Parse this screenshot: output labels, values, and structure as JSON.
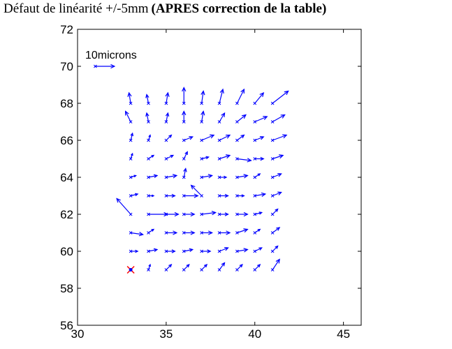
{
  "title_part1": "Défaut de linéarité +/-5mm",
  "title_part2": "(APRES correction de la table)",
  "chart_data": {
    "type": "quiver",
    "title": "Défaut de linéarité +/-5mm (APRES correction de la table)",
    "xlim": [
      30,
      46
    ],
    "ylim": [
      56,
      72
    ],
    "xticks": [
      30,
      35,
      40,
      45
    ],
    "yticks": [
      56,
      58,
      60,
      62,
      64,
      66,
      68,
      70,
      72
    ],
    "grid": false,
    "arrow_color": "#0000ff",
    "reference_marker": {
      "x": 33,
      "y": 59,
      "color": "#ff0000"
    },
    "scale_arrow": {
      "label": "10microns",
      "x": 31,
      "y": 70,
      "u": 1.1,
      "v": 0
    },
    "vectors": [
      {
        "x": 33,
        "y": 68,
        "u": -0.1,
        "v": 0.6
      },
      {
        "x": 34,
        "y": 68,
        "u": -0.1,
        "v": 0.5
      },
      {
        "x": 35,
        "y": 68,
        "u": 0.1,
        "v": 0.6
      },
      {
        "x": 36,
        "y": 68,
        "u": 0.0,
        "v": 0.9
      },
      {
        "x": 37,
        "y": 68,
        "u": 0.1,
        "v": 0.7
      },
      {
        "x": 38,
        "y": 68,
        "u": 0.2,
        "v": 0.8
      },
      {
        "x": 39,
        "y": 68,
        "u": 0.4,
        "v": 0.8
      },
      {
        "x": 40,
        "y": 68,
        "u": 0.5,
        "v": 0.6
      },
      {
        "x": 41,
        "y": 68,
        "u": 0.9,
        "v": 0.7
      },
      {
        "x": 33,
        "y": 67,
        "u": -0.3,
        "v": 0.6
      },
      {
        "x": 34,
        "y": 67,
        "u": -0.1,
        "v": 0.5
      },
      {
        "x": 35,
        "y": 67,
        "u": 0.1,
        "v": 0.5
      },
      {
        "x": 36,
        "y": 67,
        "u": 0.0,
        "v": 0.6
      },
      {
        "x": 37,
        "y": 67,
        "u": 0.1,
        "v": 0.6
      },
      {
        "x": 38,
        "y": 67,
        "u": 0.3,
        "v": 0.5
      },
      {
        "x": 39,
        "y": 67,
        "u": 0.5,
        "v": 0.4
      },
      {
        "x": 40,
        "y": 67,
        "u": 0.7,
        "v": 0.3
      },
      {
        "x": 41,
        "y": 67,
        "u": 0.7,
        "v": 0.4
      },
      {
        "x": 33,
        "y": 66,
        "u": 0.1,
        "v": 0.4
      },
      {
        "x": 34,
        "y": 66,
        "u": 0.1,
        "v": 0.3
      },
      {
        "x": 35,
        "y": 66,
        "u": 0.3,
        "v": 0.3
      },
      {
        "x": 36,
        "y": 66,
        "u": 0.5,
        "v": 0.2
      },
      {
        "x": 37,
        "y": 66,
        "u": 0.7,
        "v": 0.3
      },
      {
        "x": 38,
        "y": 66,
        "u": 0.6,
        "v": 0.3
      },
      {
        "x": 39,
        "y": 66,
        "u": 0.4,
        "v": 0.3
      },
      {
        "x": 40,
        "y": 66,
        "u": 0.5,
        "v": 0.2
      },
      {
        "x": 41,
        "y": 66,
        "u": 0.8,
        "v": 0.3
      },
      {
        "x": 33,
        "y": 65,
        "u": 0.1,
        "v": 0.3
      },
      {
        "x": 34,
        "y": 65,
        "u": 0.3,
        "v": 0.2
      },
      {
        "x": 35,
        "y": 65,
        "u": 0.4,
        "v": 0.2
      },
      {
        "x": 36,
        "y": 65,
        "u": 0.2,
        "v": 0.4
      },
      {
        "x": 37,
        "y": 65,
        "u": 0.4,
        "v": 0.1
      },
      {
        "x": 38,
        "y": 65,
        "u": 0.6,
        "v": 0.2
      },
      {
        "x": 39,
        "y": 65,
        "u": 0.8,
        "v": -0.1
      },
      {
        "x": 40,
        "y": 65,
        "u": 0.5,
        "v": 0.0
      },
      {
        "x": 41,
        "y": 65,
        "u": 0.6,
        "v": 0.2
      },
      {
        "x": 33,
        "y": 64,
        "u": 0.3,
        "v": 0.1
      },
      {
        "x": 34,
        "y": 64,
        "u": 0.5,
        "v": 0.1
      },
      {
        "x": 35,
        "y": 64,
        "u": 0.6,
        "v": 0.1
      },
      {
        "x": 36,
        "y": 64,
        "u": 0.1,
        "v": 0.5
      },
      {
        "x": 37,
        "y": 64,
        "u": 0.6,
        "v": 0.1
      },
      {
        "x": 38,
        "y": 64,
        "u": 0.4,
        "v": 0.0
      },
      {
        "x": 39,
        "y": 64,
        "u": 0.6,
        "v": 0.1
      },
      {
        "x": 40,
        "y": 64,
        "u": 0.3,
        "v": 0.2
      },
      {
        "x": 41,
        "y": 64,
        "u": 0.5,
        "v": 0.2
      },
      {
        "x": 33,
        "y": 63,
        "u": 0.4,
        "v": 0.1
      },
      {
        "x": 34,
        "y": 63,
        "u": 0.3,
        "v": 0.0
      },
      {
        "x": 35,
        "y": 63,
        "u": 0.5,
        "v": 0.0
      },
      {
        "x": 36,
        "y": 63,
        "u": 0.8,
        "v": 0.0
      },
      {
        "x": 37,
        "y": 63,
        "u": -0.6,
        "v": 0.6
      },
      {
        "x": 38,
        "y": 63,
        "u": 0.5,
        "v": 0.0
      },
      {
        "x": 39,
        "y": 63,
        "u": 0.4,
        "v": 0.0
      },
      {
        "x": 40,
        "y": 63,
        "u": 0.6,
        "v": 0.1
      },
      {
        "x": 41,
        "y": 63,
        "u": 0.5,
        "v": 0.2
      },
      {
        "x": 33,
        "y": 62,
        "u": -0.8,
        "v": 0.9
      },
      {
        "x": 34,
        "y": 62,
        "u": 1.1,
        "v": 0.0
      },
      {
        "x": 35,
        "y": 62,
        "u": 0.7,
        "v": 0.0
      },
      {
        "x": 36,
        "y": 62,
        "u": 0.6,
        "v": 0.0
      },
      {
        "x": 37,
        "y": 62,
        "u": 0.8,
        "v": 0.1
      },
      {
        "x": 38,
        "y": 62,
        "u": 0.5,
        "v": 0.0
      },
      {
        "x": 39,
        "y": 62,
        "u": 0.6,
        "v": 0.0
      },
      {
        "x": 40,
        "y": 62,
        "u": 0.4,
        "v": 0.1
      },
      {
        "x": 41,
        "y": 62,
        "u": 0.3,
        "v": 0.3
      },
      {
        "x": 33,
        "y": 61,
        "u": 0.7,
        "v": -0.1
      },
      {
        "x": 34,
        "y": 61,
        "u": 0.3,
        "v": 0.2
      },
      {
        "x": 35,
        "y": 61,
        "u": 0.6,
        "v": 0.0
      },
      {
        "x": 36,
        "y": 61,
        "u": 0.6,
        "v": 0.0
      },
      {
        "x": 37,
        "y": 61,
        "u": 0.6,
        "v": 0.0
      },
      {
        "x": 38,
        "y": 61,
        "u": 0.6,
        "v": 0.0
      },
      {
        "x": 39,
        "y": 61,
        "u": 0.6,
        "v": 0.2
      },
      {
        "x": 40,
        "y": 61,
        "u": 0.3,
        "v": 0.2
      },
      {
        "x": 41,
        "y": 61,
        "u": 0.4,
        "v": 0.3
      },
      {
        "x": 33,
        "y": 60,
        "u": 0.4,
        "v": 0.0
      },
      {
        "x": 34,
        "y": 60,
        "u": 0.5,
        "v": 0.1
      },
      {
        "x": 35,
        "y": 60,
        "u": 0.5,
        "v": 0.0
      },
      {
        "x": 36,
        "y": 60,
        "u": 0.5,
        "v": 0.1
      },
      {
        "x": 37,
        "y": 60,
        "u": 0.5,
        "v": 0.0
      },
      {
        "x": 38,
        "y": 60,
        "u": 0.5,
        "v": 0.2
      },
      {
        "x": 39,
        "y": 60,
        "u": 0.6,
        "v": 0.1
      },
      {
        "x": 40,
        "y": 60,
        "u": 0.4,
        "v": 0.2
      },
      {
        "x": 41,
        "y": 60,
        "u": 0.3,
        "v": 0.3
      },
      {
        "x": 34,
        "y": 59,
        "u": 0.1,
        "v": 0.3
      },
      {
        "x": 35,
        "y": 59,
        "u": 0.3,
        "v": 0.3
      },
      {
        "x": 36,
        "y": 59,
        "u": 0.3,
        "v": 0.3
      },
      {
        "x": 37,
        "y": 59,
        "u": 0.3,
        "v": 0.3
      },
      {
        "x": 38,
        "y": 59,
        "u": 0.3,
        "v": 0.4
      },
      {
        "x": 39,
        "y": 59,
        "u": 0.3,
        "v": 0.3
      },
      {
        "x": 40,
        "y": 59,
        "u": 0.3,
        "v": 0.3
      },
      {
        "x": 41,
        "y": 59,
        "u": 0.4,
        "v": 0.6
      }
    ]
  }
}
